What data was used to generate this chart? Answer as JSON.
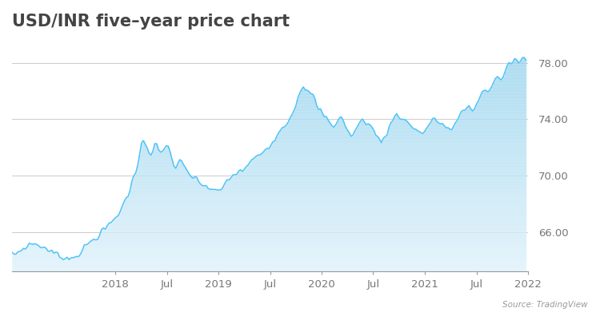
{
  "title": "USD/INR five–year price chart",
  "source_text": "Source: TradingView",
  "ytick_vals": [
    66,
    70,
    74,
    78
  ],
  "ylim": [
    63.2,
    79.8
  ],
  "line_color": "#4fc3f7",
  "fill_color_top": "#a8d8f0",
  "fill_color_bottom": "#dff0fb",
  "background_color": "#ffffff",
  "title_fontsize": 15,
  "tick_fontsize": 9.5,
  "x_tick_labels": [
    "2018",
    "Jul",
    "2019",
    "Jul",
    "2020",
    "Jul",
    "2021",
    "Jul",
    "2022"
  ],
  "waypoints": [
    [
      0,
      64.3
    ],
    [
      5,
      64.8
    ],
    [
      10,
      65.2
    ],
    [
      15,
      65.0
    ],
    [
      20,
      64.6
    ],
    [
      25,
      64.3
    ],
    [
      30,
      64.1
    ],
    [
      35,
      64.5
    ],
    [
      40,
      65.2
    ],
    [
      45,
      65.8
    ],
    [
      50,
      66.4
    ],
    [
      55,
      67.2
    ],
    [
      60,
      68.5
    ],
    [
      65,
      70.5
    ],
    [
      68,
      72.8
    ],
    [
      70,
      72.0
    ],
    [
      73,
      71.2
    ],
    [
      75,
      72.5
    ],
    [
      77,
      71.5
    ],
    [
      79,
      72.0
    ],
    [
      82,
      72.0
    ],
    [
      85,
      70.5
    ],
    [
      88,
      71.0
    ],
    [
      92,
      70.2
    ],
    [
      95,
      69.8
    ],
    [
      98,
      69.5
    ],
    [
      102,
      69.2
    ],
    [
      105,
      69.0
    ],
    [
      108,
      68.8
    ],
    [
      112,
      69.5
    ],
    [
      115,
      70.0
    ],
    [
      118,
      70.2
    ],
    [
      122,
      70.5
    ],
    [
      125,
      71.0
    ],
    [
      128,
      71.3
    ],
    [
      132,
      71.8
    ],
    [
      135,
      72.2
    ],
    [
      138,
      72.8
    ],
    [
      142,
      73.5
    ],
    [
      145,
      74.0
    ],
    [
      148,
      74.8
    ],
    [
      150,
      75.8
    ],
    [
      152,
      76.4
    ],
    [
      154,
      75.8
    ],
    [
      156,
      76.0
    ],
    [
      158,
      75.5
    ],
    [
      160,
      74.8
    ],
    [
      162,
      74.5
    ],
    [
      165,
      74.0
    ],
    [
      168,
      73.5
    ],
    [
      170,
      73.8
    ],
    [
      172,
      74.2
    ],
    [
      174,
      73.8
    ],
    [
      176,
      73.0
    ],
    [
      178,
      72.8
    ],
    [
      181,
      73.5
    ],
    [
      184,
      74.0
    ],
    [
      186,
      73.8
    ],
    [
      188,
      73.5
    ],
    [
      190,
      73.0
    ],
    [
      193,
      72.5
    ],
    [
      196,
      72.8
    ],
    [
      198,
      73.5
    ],
    [
      200,
      74.2
    ],
    [
      202,
      74.5
    ],
    [
      204,
      74.0
    ],
    [
      207,
      73.8
    ],
    [
      210,
      73.5
    ],
    [
      212,
      73.2
    ],
    [
      215,
      73.0
    ],
    [
      218,
      73.5
    ],
    [
      221,
      74.0
    ],
    [
      224,
      73.8
    ],
    [
      227,
      73.5
    ],
    [
      230,
      73.2
    ],
    [
      233,
      73.8
    ],
    [
      236,
      74.5
    ],
    [
      238,
      74.8
    ],
    [
      240,
      75.0
    ],
    [
      242,
      74.5
    ],
    [
      244,
      75.2
    ],
    [
      246,
      75.8
    ],
    [
      248,
      76.2
    ],
    [
      250,
      76.0
    ],
    [
      252,
      76.5
    ],
    [
      254,
      77.0
    ],
    [
      256,
      76.8
    ],
    [
      258,
      77.2
    ],
    [
      260,
      77.8
    ],
    [
      263,
      78.2
    ],
    [
      266,
      78.0
    ],
    [
      268,
      78.5
    ],
    [
      270,
      78.0
    ]
  ]
}
